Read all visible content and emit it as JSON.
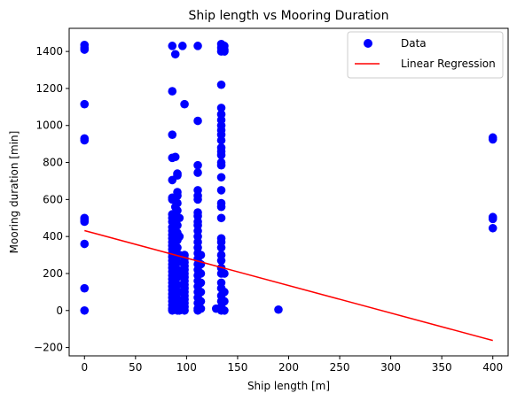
{
  "chart_data": {
    "type": "scatter",
    "title": "Ship length vs Mooring Duration",
    "xlabel": "Ship length [m]",
    "ylabel": "Mooring duration [min]",
    "xlim": [
      -15,
      415
    ],
    "ylim": [
      -245,
      1525
    ],
    "x_ticks": [
      0,
      50,
      100,
      150,
      200,
      250,
      300,
      350,
      400
    ],
    "y_ticks": [
      -200,
      0,
      200,
      400,
      600,
      800,
      1000,
      1200,
      1400
    ],
    "grid": false,
    "legend": {
      "placement": "top-right",
      "entries": [
        "Data",
        "Linear Regression"
      ]
    },
    "colors": {
      "data": "#0000ff",
      "regression": "#ff0000"
    },
    "series": [
      {
        "name": "Data",
        "kind": "scatter",
        "points": [
          [
            0,
            1435
          ],
          [
            0,
            1420
          ],
          [
            0,
            1410
          ],
          [
            0,
            1115
          ],
          [
            0,
            930
          ],
          [
            0,
            920
          ],
          [
            0,
            500
          ],
          [
            0,
            490
          ],
          [
            0,
            480
          ],
          [
            0,
            360
          ],
          [
            0,
            120
          ],
          [
            0,
            0
          ],
          [
            86,
            1430
          ],
          [
            86,
            1185
          ],
          [
            86,
            950
          ],
          [
            86,
            825
          ],
          [
            86,
            705
          ],
          [
            86,
            610
          ],
          [
            86,
            600
          ],
          [
            86,
            520
          ],
          [
            86,
            500
          ],
          [
            86,
            480
          ],
          [
            86,
            450
          ],
          [
            86,
            430
          ],
          [
            86,
            410
          ],
          [
            86,
            390
          ],
          [
            86,
            370
          ],
          [
            86,
            350
          ],
          [
            86,
            330
          ],
          [
            86,
            310
          ],
          [
            86,
            290
          ],
          [
            86,
            270
          ],
          [
            86,
            250
          ],
          [
            86,
            230
          ],
          [
            86,
            210
          ],
          [
            86,
            190
          ],
          [
            86,
            170
          ],
          [
            86,
            150
          ],
          [
            86,
            130
          ],
          [
            86,
            110
          ],
          [
            86,
            90
          ],
          [
            86,
            70
          ],
          [
            86,
            50
          ],
          [
            86,
            30
          ],
          [
            86,
            10
          ],
          [
            86,
            0
          ],
          [
            89,
            1385
          ],
          [
            89,
            830
          ],
          [
            89,
            600
          ],
          [
            89,
            560
          ],
          [
            89,
            520
          ],
          [
            89,
            480
          ],
          [
            89,
            440
          ],
          [
            89,
            400
          ],
          [
            89,
            360
          ],
          [
            89,
            320
          ],
          [
            89,
            280
          ],
          [
            89,
            240
          ],
          [
            89,
            200
          ],
          [
            89,
            160
          ],
          [
            89,
            120
          ],
          [
            89,
            80
          ],
          [
            89,
            40
          ],
          [
            89,
            10
          ],
          [
            91,
            740
          ],
          [
            91,
            730
          ],
          [
            91,
            640
          ],
          [
            91,
            620
          ],
          [
            91,
            580
          ],
          [
            91,
            540
          ],
          [
            91,
            500
          ],
          [
            91,
            460
          ],
          [
            91,
            420
          ],
          [
            91,
            380
          ],
          [
            91,
            340
          ],
          [
            91,
            300
          ],
          [
            91,
            260
          ],
          [
            91,
            220
          ],
          [
            91,
            180
          ],
          [
            91,
            140
          ],
          [
            91,
            100
          ],
          [
            91,
            60
          ],
          [
            91,
            20
          ],
          [
            91,
            0
          ],
          [
            93,
            500
          ],
          [
            93,
            400
          ],
          [
            93,
            300
          ],
          [
            93,
            200
          ],
          [
            93,
            100
          ],
          [
            93,
            50
          ],
          [
            93,
            0
          ],
          [
            96,
            1430
          ],
          [
            98,
            1115
          ],
          [
            98,
            300
          ],
          [
            98,
            280
          ],
          [
            98,
            260
          ],
          [
            98,
            240
          ],
          [
            98,
            220
          ],
          [
            98,
            200
          ],
          [
            98,
            180
          ],
          [
            98,
            160
          ],
          [
            98,
            140
          ],
          [
            98,
            120
          ],
          [
            98,
            100
          ],
          [
            98,
            80
          ],
          [
            98,
            60
          ],
          [
            98,
            40
          ],
          [
            98,
            20
          ],
          [
            98,
            0
          ],
          [
            111,
            1430
          ],
          [
            111,
            1025
          ],
          [
            111,
            785
          ],
          [
            111,
            745
          ],
          [
            111,
            650
          ],
          [
            111,
            620
          ],
          [
            111,
            600
          ],
          [
            111,
            530
          ],
          [
            111,
            510
          ],
          [
            111,
            480
          ],
          [
            111,
            460
          ],
          [
            111,
            430
          ],
          [
            111,
            400
          ],
          [
            111,
            370
          ],
          [
            111,
            340
          ],
          [
            111,
            310
          ],
          [
            111,
            280
          ],
          [
            111,
            250
          ],
          [
            111,
            220
          ],
          [
            111,
            190
          ],
          [
            111,
            160
          ],
          [
            111,
            130
          ],
          [
            111,
            100
          ],
          [
            111,
            70
          ],
          [
            111,
            40
          ],
          [
            111,
            10
          ],
          [
            111,
            0
          ],
          [
            114,
            300
          ],
          [
            114,
            250
          ],
          [
            114,
            200
          ],
          [
            114,
            150
          ],
          [
            114,
            100
          ],
          [
            114,
            50
          ],
          [
            114,
            10
          ],
          [
            129,
            10
          ],
          [
            134,
            1440
          ],
          [
            134,
            1420
          ],
          [
            134,
            1400
          ],
          [
            134,
            1220
          ],
          [
            134,
            1095
          ],
          [
            134,
            1060
          ],
          [
            134,
            1030
          ],
          [
            134,
            1000
          ],
          [
            134,
            975
          ],
          [
            134,
            950
          ],
          [
            134,
            920
          ],
          [
            134,
            880
          ],
          [
            134,
            860
          ],
          [
            134,
            840
          ],
          [
            134,
            800
          ],
          [
            134,
            785
          ],
          [
            134,
            720
          ],
          [
            134,
            650
          ],
          [
            134,
            580
          ],
          [
            134,
            560
          ],
          [
            134,
            500
          ],
          [
            134,
            390
          ],
          [
            134,
            370
          ],
          [
            134,
            340
          ],
          [
            134,
            300
          ],
          [
            134,
            270
          ],
          [
            134,
            230
          ],
          [
            134,
            200
          ],
          [
            134,
            150
          ],
          [
            134,
            120
          ],
          [
            134,
            80
          ],
          [
            134,
            50
          ],
          [
            134,
            20
          ],
          [
            134,
            0
          ],
          [
            137,
            1430
          ],
          [
            137,
            1410
          ],
          [
            137,
            1400
          ],
          [
            137,
            200
          ],
          [
            137,
            100
          ],
          [
            137,
            50
          ],
          [
            137,
            0
          ],
          [
            190,
            5
          ],
          [
            400,
            935
          ],
          [
            400,
            925
          ],
          [
            400,
            505
          ],
          [
            400,
            495
          ],
          [
            400,
            445
          ]
        ]
      },
      {
        "name": "Linear Regression",
        "kind": "line",
        "x": [
          0,
          400
        ],
        "y": [
          432,
          -162
        ]
      }
    ]
  }
}
